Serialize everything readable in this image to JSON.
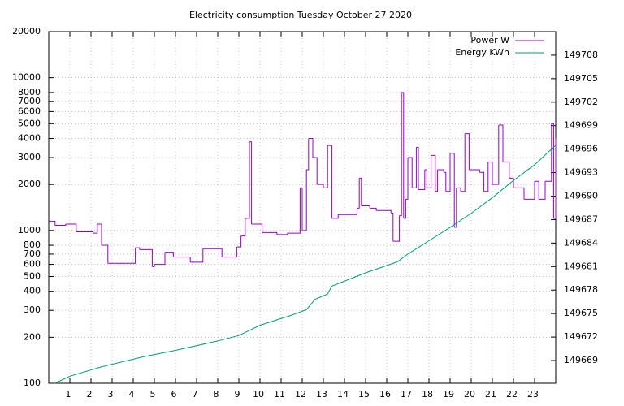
{
  "chart_data": {
    "type": "line",
    "title": "Electricity consumption Tuesday October 27 2020",
    "xlim": [
      0,
      24
    ],
    "xticks": [
      1,
      2,
      3,
      4,
      5,
      6,
      7,
      8,
      9,
      10,
      11,
      12,
      13,
      14,
      15,
      16,
      17,
      18,
      19,
      20,
      21,
      22,
      23
    ],
    "ylim": [
      100,
      20000
    ],
    "log_y": true,
    "yticks": [
      100,
      200,
      300,
      400,
      500,
      600,
      700,
      800,
      1000,
      2000,
      3000,
      4000,
      5000,
      6000,
      7000,
      8000,
      10000,
      20000
    ],
    "y2lim": [
      149666.1,
      149711
    ],
    "y2ticks": [
      149669,
      149672,
      149675,
      149678,
      149681,
      149684,
      149687,
      149690,
      149693,
      149696,
      149699,
      149702,
      149705,
      149708
    ],
    "grid": true,
    "legend": "top-right",
    "series": [
      {
        "name": "Power W",
        "color": "#9400d3",
        "style": "steps",
        "x": [
          0,
          0.3,
          0.8,
          1.3,
          2.1,
          2.3,
          2.5,
          2.8,
          4.1,
          4.3,
          4.9,
          5.0,
          5.5,
          5.9,
          6.7,
          7.3,
          8.2,
          8.9,
          9.1,
          9.3,
          9.5,
          9.6,
          10.1,
          10.8,
          11.3,
          11.9,
          12.0,
          12.2,
          12.3,
          12.5,
          12.7,
          13.0,
          13.2,
          13.4,
          13.7,
          14.6,
          14.7,
          14.8,
          15.2,
          15.5,
          16.2,
          16.3,
          16.6,
          16.7,
          16.8,
          16.9,
          17.0,
          17.2,
          17.4,
          17.5,
          17.8,
          17.9,
          18.1,
          18.3,
          18.4,
          18.7,
          18.8,
          19.0,
          19.2,
          19.3,
          19.5,
          19.7,
          19.9,
          20.4,
          20.6,
          20.8,
          21.0,
          21.3,
          21.5,
          21.8,
          22.0,
          22.3,
          22.5,
          23.0,
          23.2,
          23.5,
          23.8,
          23.9,
          24
        ],
        "values": [
          1150,
          1080,
          1100,
          980,
          960,
          1100,
          800,
          610,
          770,
          750,
          580,
          600,
          720,
          670,
          620,
          760,
          670,
          780,
          920,
          1200,
          3800,
          1100,
          970,
          940,
          960,
          1900,
          1000,
          2500,
          4000,
          3000,
          2000,
          1900,
          3600,
          1200,
          1270,
          1400,
          2200,
          1450,
          1400,
          1350,
          1300,
          850,
          1250,
          8000,
          1200,
          1600,
          3000,
          1900,
          3500,
          1850,
          2500,
          1900,
          3100,
          1800,
          2500,
          2400,
          1800,
          3200,
          1050,
          1900,
          1800,
          4300,
          2500,
          2400,
          1800,
          2800,
          2000,
          4900,
          2800,
          2200,
          1900,
          1900,
          1600,
          2100,
          1600,
          2100,
          5000,
          1200,
          4000
        ]
      },
      {
        "name": "Energy KWh",
        "color": "#009e73",
        "axis": "y2",
        "x": [
          0.3,
          1.0,
          2.5,
          4.5,
          6.0,
          8.0,
          9.0,
          10.0,
          11.5,
          12.2,
          12.6,
          13.2,
          13.4,
          15.0,
          16.5,
          17.0,
          18.0,
          19.0,
          20.0,
          21.0,
          22.0,
          23.0,
          24.0
        ],
        "values": [
          149666.1,
          149667,
          149668.2,
          149669.5,
          149670.3,
          149671.5,
          149672.2,
          149673.5,
          149674.8,
          149675.5,
          149676.8,
          149677.5,
          149678.5,
          149680.2,
          149681.6,
          149682.6,
          149684.3,
          149686,
          149687.8,
          149689.8,
          149692,
          149694,
          149696.5
        ]
      }
    ]
  }
}
